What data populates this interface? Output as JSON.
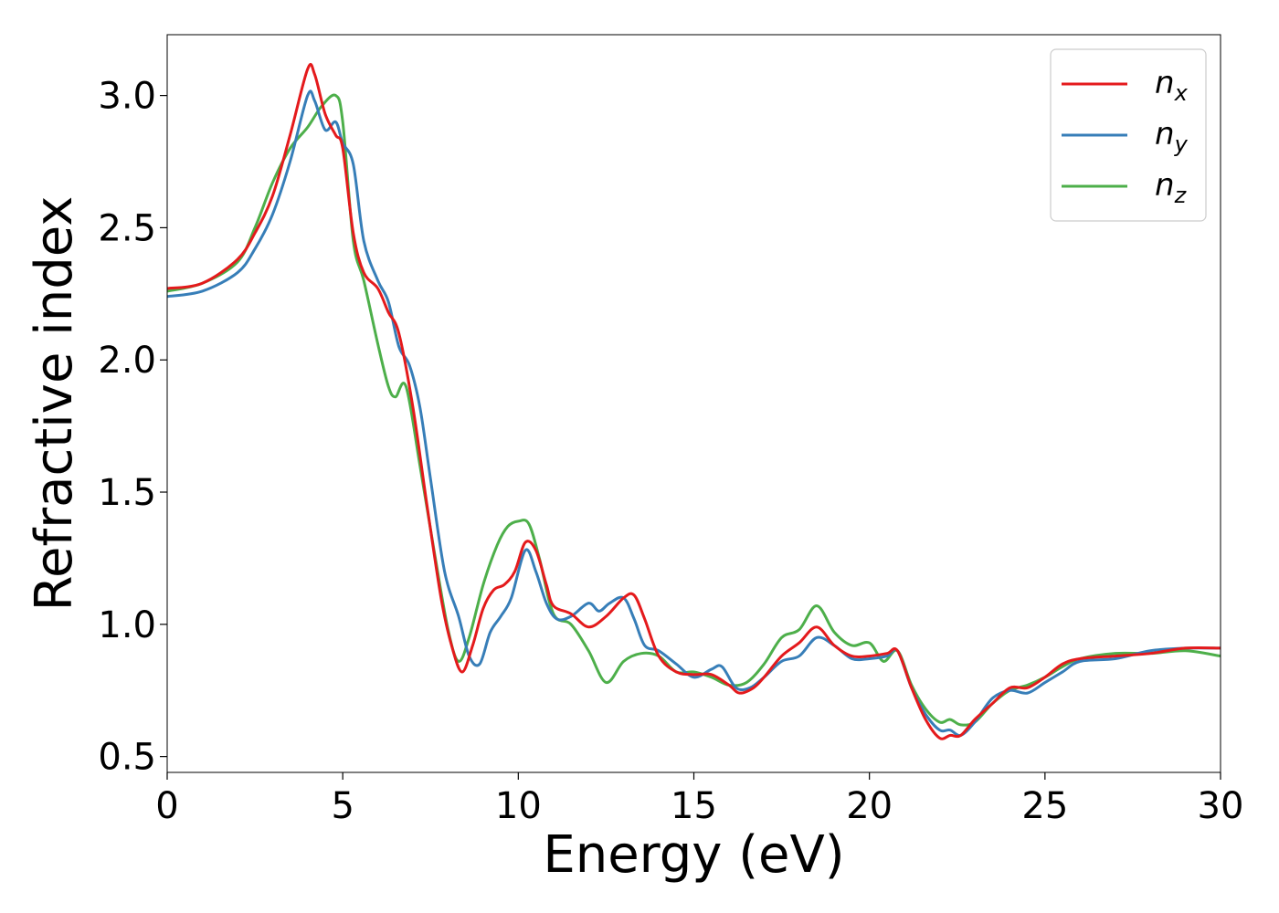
{
  "chart_data": {
    "type": "line",
    "xlabel": "Energy (eV)",
    "ylabel": "Refractive index",
    "xlim": [
      0,
      30
    ],
    "ylim": [
      0.44,
      3.23
    ],
    "xticks": [
      0,
      5,
      10,
      15,
      20,
      25,
      30
    ],
    "xtick_labels": [
      "0",
      "5",
      "10",
      "15",
      "20",
      "25",
      "30"
    ],
    "yticks": [
      0.5,
      1.0,
      1.5,
      2.0,
      2.5,
      3.0
    ],
    "ytick_labels": [
      "0.5",
      "1.0",
      "1.5",
      "2.0",
      "2.5",
      "3.0"
    ],
    "grid": false,
    "legend_position": "top-right",
    "series": [
      {
        "name": "n_x",
        "label_base": "n",
        "label_sub": "x",
        "color": "#e41a1c",
        "x": [
          0,
          1,
          2,
          2.5,
          3,
          3.5,
          4,
          4.2,
          4.5,
          4.8,
          5,
          5.3,
          5.6,
          6,
          6.3,
          6.6,
          7,
          7.4,
          7.8,
          8.1,
          8.4,
          8.7,
          9,
          9.3,
          9.6,
          9.9,
          10.2,
          10.5,
          10.8,
          11,
          11.5,
          12,
          12.5,
          13,
          13.3,
          13.6,
          14,
          14.5,
          15,
          15.5,
          16,
          16.3,
          16.7,
          17,
          17.5,
          18,
          18.5,
          19,
          19.5,
          20,
          20.5,
          20.8,
          21.2,
          21.6,
          22,
          22.3,
          22.6,
          23,
          23.5,
          24,
          24.5,
          25,
          25.5,
          26,
          27,
          28,
          29,
          30
        ],
        "y": [
          2.27,
          2.29,
          2.38,
          2.48,
          2.62,
          2.85,
          3.1,
          3.08,
          2.93,
          2.85,
          2.8,
          2.48,
          2.33,
          2.27,
          2.18,
          2.1,
          1.82,
          1.45,
          1.1,
          0.92,
          0.82,
          0.92,
          1.06,
          1.13,
          1.15,
          1.2,
          1.31,
          1.28,
          1.15,
          1.07,
          1.04,
          0.99,
          1.03,
          1.1,
          1.11,
          1.02,
          0.88,
          0.82,
          0.81,
          0.81,
          0.77,
          0.74,
          0.76,
          0.8,
          0.88,
          0.93,
          0.99,
          0.92,
          0.88,
          0.88,
          0.89,
          0.9,
          0.76,
          0.64,
          0.57,
          0.58,
          0.58,
          0.64,
          0.7,
          0.76,
          0.76,
          0.8,
          0.85,
          0.87,
          0.88,
          0.89,
          0.91,
          0.91
        ]
      },
      {
        "name": "n_y",
        "label_base": "n",
        "label_sub": "y",
        "color": "#377eb8",
        "x": [
          0,
          1,
          2,
          2.5,
          3,
          3.5,
          4,
          4.2,
          4.5,
          4.8,
          5,
          5.3,
          5.6,
          6,
          6.3,
          6.6,
          6.9,
          7.2,
          7.5,
          7.9,
          8.3,
          8.6,
          8.9,
          9.2,
          9.5,
          9.8,
          10.2,
          10.5,
          10.8,
          11.1,
          11.5,
          12,
          12.3,
          12.6,
          13,
          13.3,
          13.6,
          14,
          14.5,
          15,
          15.5,
          15.8,
          16.2,
          16.6,
          17,
          17.5,
          18,
          18.5,
          19,
          19.5,
          20,
          20.5,
          20.8,
          21.2,
          21.6,
          22,
          22.3,
          22.6,
          23,
          23.5,
          24,
          24.5,
          25,
          25.5,
          26,
          27,
          28,
          29,
          30
        ],
        "y": [
          2.24,
          2.26,
          2.33,
          2.42,
          2.55,
          2.75,
          3.0,
          2.98,
          2.87,
          2.9,
          2.82,
          2.74,
          2.45,
          2.3,
          2.22,
          2.05,
          1.98,
          1.82,
          1.55,
          1.2,
          1.03,
          0.88,
          0.85,
          0.97,
          1.03,
          1.1,
          1.28,
          1.2,
          1.08,
          1.02,
          1.03,
          1.08,
          1.05,
          1.08,
          1.1,
          1.02,
          0.92,
          0.9,
          0.85,
          0.8,
          0.83,
          0.84,
          0.76,
          0.76,
          0.8,
          0.86,
          0.88,
          0.95,
          0.92,
          0.87,
          0.87,
          0.88,
          0.9,
          0.76,
          0.66,
          0.6,
          0.6,
          0.58,
          0.63,
          0.72,
          0.75,
          0.74,
          0.78,
          0.82,
          0.86,
          0.87,
          0.9,
          0.91,
          0.91
        ]
      },
      {
        "name": "n_z",
        "label_base": "n",
        "label_sub": "z",
        "color": "#4daf4a",
        "x": [
          0,
          1,
          2,
          2.5,
          3,
          3.5,
          4,
          4.4,
          4.8,
          5,
          5.3,
          5.6,
          6,
          6.3,
          6.5,
          6.8,
          7.2,
          7.6,
          8,
          8.3,
          8.6,
          9,
          9.4,
          9.7,
          10,
          10.3,
          10.6,
          11,
          11.5,
          12,
          12.5,
          13,
          13.5,
          14,
          14.5,
          15,
          15.5,
          16,
          16.5,
          17,
          17.5,
          18,
          18.5,
          19,
          19.5,
          20,
          20.4,
          20.8,
          21.2,
          21.6,
          22,
          22.3,
          22.6,
          23,
          23.5,
          24,
          24.5,
          25,
          25.5,
          26,
          27,
          28,
          29,
          30
        ],
        "y": [
          2.26,
          2.29,
          2.37,
          2.5,
          2.67,
          2.8,
          2.88,
          2.96,
          3.0,
          2.9,
          2.45,
          2.3,
          2.06,
          1.9,
          1.86,
          1.9,
          1.6,
          1.28,
          0.98,
          0.86,
          0.95,
          1.15,
          1.3,
          1.37,
          1.39,
          1.38,
          1.25,
          1.04,
          1.0,
          0.9,
          0.78,
          0.86,
          0.89,
          0.88,
          0.82,
          0.82,
          0.8,
          0.77,
          0.78,
          0.85,
          0.95,
          0.98,
          1.07,
          0.97,
          0.92,
          0.93,
          0.86,
          0.9,
          0.77,
          0.68,
          0.63,
          0.64,
          0.62,
          0.63,
          0.7,
          0.75,
          0.77,
          0.8,
          0.84,
          0.87,
          0.89,
          0.89,
          0.9,
          0.88
        ]
      }
    ]
  }
}
